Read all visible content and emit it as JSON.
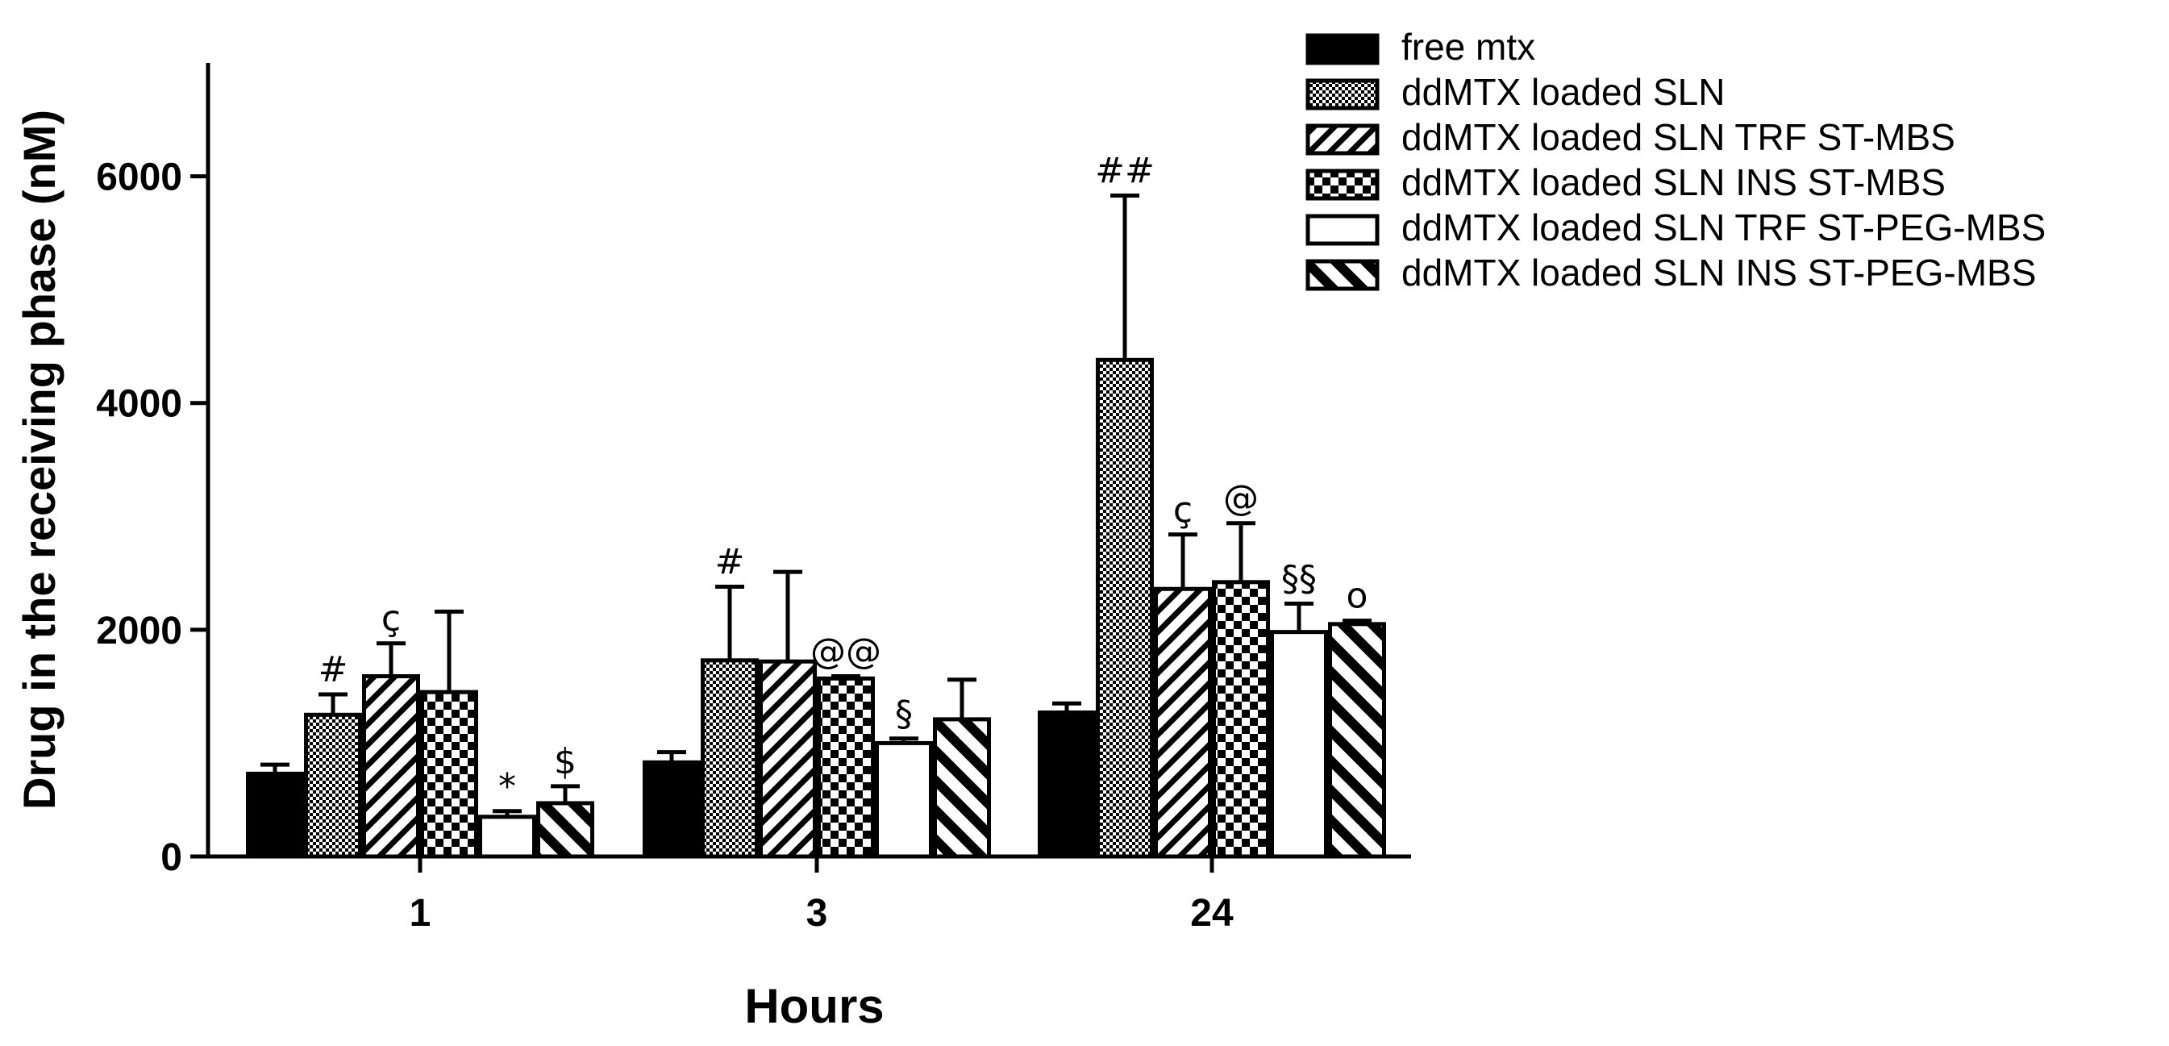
{
  "chart_data": {
    "type": "bar",
    "title": "",
    "xlabel": "Hours",
    "ylabel": "Drug in the receiving phase (nM)",
    "ylim": [
      0,
      7000
    ],
    "yticks": [
      0,
      2000,
      4000,
      6000
    ],
    "categories": [
      "1",
      "3",
      "24"
    ],
    "grid": false,
    "legend_position": "top-right",
    "series": [
      {
        "name": "free mtx",
        "pattern": "solid",
        "values": [
          730,
          830,
          1270
        ],
        "errors": [
          80,
          90,
          80
        ],
        "annotations": [
          "",
          "",
          ""
        ]
      },
      {
        "name": "ddMTX loaded SLN",
        "pattern": "dots",
        "values": [
          1250,
          1730,
          4380
        ],
        "errors": [
          180,
          650,
          1450
        ],
        "annotations": [
          "#",
          "#",
          "##"
        ]
      },
      {
        "name": "ddMTX loaded SLN TRF ST-MBS",
        "pattern": "diag-right",
        "values": [
          1590,
          1720,
          2360
        ],
        "errors": [
          290,
          790,
          480
        ],
        "annotations": [
          "ç",
          "",
          "ç"
        ]
      },
      {
        "name": "ddMTX loaded SLN INS ST-MBS",
        "pattern": "checker",
        "values": [
          1450,
          1570,
          2420
        ],
        "errors": [
          710,
          20,
          520
        ],
        "annotations": [
          "",
          "@@",
          "@"
        ]
      },
      {
        "name": "ddMTX loaded SLN TRF ST-PEG-MBS",
        "pattern": "empty",
        "values": [
          350,
          1000,
          1980
        ],
        "errors": [
          50,
          40,
          250
        ],
        "annotations": [
          "*",
          "§",
          "§§"
        ]
      },
      {
        "name": "ddMTX loaded SLN INS ST-PEG-MBS",
        "pattern": "diag-left",
        "values": [
          470,
          1210,
          2050
        ],
        "errors": [
          150,
          350,
          30
        ],
        "annotations": [
          "$",
          "",
          "o"
        ]
      }
    ]
  }
}
